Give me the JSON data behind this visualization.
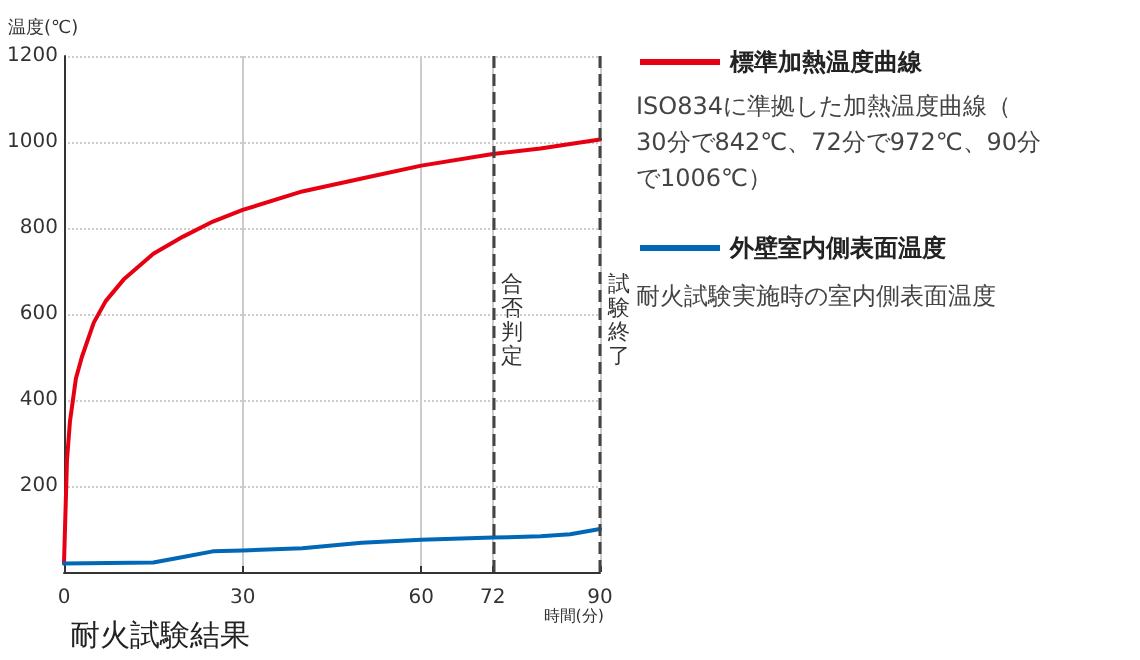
{
  "chart_data": {
    "type": "line",
    "title": "耐火試験結果",
    "xlabel": "時間(分)",
    "ylabel": "温度(℃)",
    "xlim": [
      0,
      90
    ],
    "xticks": [
      0,
      30,
      60,
      72,
      90
    ],
    "ylim": [
      0,
      1200
    ],
    "yticks": [
      {
        "value": 0,
        "label": null
      },
      200,
      400,
      600,
      800,
      1000,
      1200
    ],
    "grid": true,
    "legend": "right",
    "marker": "none",
    "line_style": "solid",
    "series": [
      {
        "name": "標準加熱温度曲線",
        "color": "#e60012",
        "x": [
          0,
          0.5,
          1,
          2,
          3,
          5,
          7,
          10,
          15,
          20,
          25,
          30,
          40,
          50,
          60,
          72,
          80,
          90
        ],
        "values": [
          20,
          260,
          350,
          450,
          500,
          580,
          630,
          680,
          740,
          780,
          815,
          842,
          885,
          915,
          945,
          972,
          985,
          1006
        ]
      },
      {
        "name": "外壁室内側表面温度",
        "color": "#0068b7",
        "x": [
          0,
          15,
          20,
          25,
          30,
          40,
          50,
          60,
          72,
          80,
          85,
          90
        ],
        "values": [
          20,
          22,
          35,
          48,
          50,
          55,
          68,
          75,
          80,
          83,
          88,
          100
        ]
      }
    ],
    "ref_lines": [
      {
        "axis": "x",
        "value": 72,
        "label": "合否判定",
        "color": "#444444",
        "line_style": "dashed"
      },
      {
        "axis": "x",
        "value": 90,
        "label": "試験終了",
        "color": "#444444",
        "line_style": "dashed"
      }
    ],
    "annotations": [
      "ISO834に準拠した加熱温度曲線（30分で842℃、72分で972℃、90分で1006℃）",
      "耐火試験実施時の室内側表面温度"
    ]
  }
}
